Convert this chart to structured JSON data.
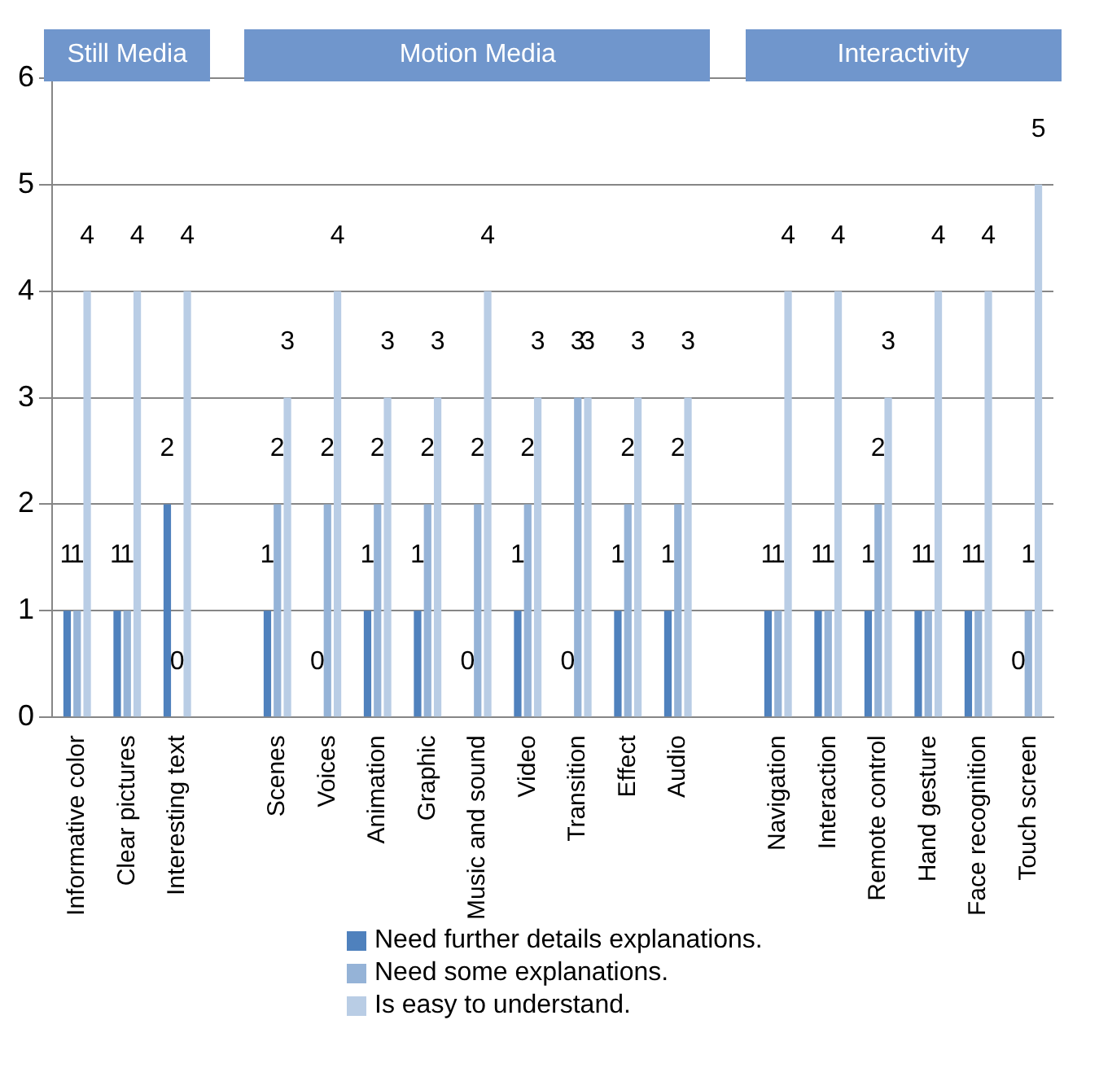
{
  "chart_data": {
    "type": "bar",
    "categories": [
      "Informative color",
      "Clear pictures",
      "Interesting text",
      null,
      "Scenes",
      "Voices",
      "Animation",
      "Graphic",
      "Music and sound",
      "Video",
      "Transition",
      "Effect",
      "Audio",
      null,
      "Navigation",
      "Interaction",
      "Remote control",
      "Hand gesture",
      "Face recognition",
      "Touch screen"
    ],
    "series": [
      {
        "name": "Need further details explanations.",
        "color": "#4f81bd",
        "values": [
          1,
          1,
          2,
          null,
          1,
          0,
          1,
          1,
          0,
          1,
          0,
          1,
          1,
          null,
          1,
          1,
          1,
          1,
          1,
          0
        ]
      },
      {
        "name": "Need some explanations.",
        "color": "#95b3d7",
        "values": [
          1,
          1,
          0,
          null,
          2,
          2,
          2,
          2,
          2,
          2,
          3,
          2,
          2,
          null,
          1,
          1,
          2,
          1,
          1,
          1
        ]
      },
      {
        "name": "Is easy to understand.",
        "color": "#b9cde5",
        "values": [
          4,
          4,
          4,
          null,
          3,
          4,
          3,
          3,
          4,
          3,
          3,
          3,
          3,
          null,
          4,
          4,
          3,
          4,
          4,
          5
        ]
      }
    ],
    "ylim": [
      0,
      6
    ],
    "yticks": [
      0,
      1,
      2,
      3,
      4,
      5,
      6
    ],
    "grid": "y",
    "legend": "bottom",
    "data_labels": true,
    "annotations": [
      "Still Media",
      "Motion Media",
      "Interactivity"
    ]
  }
}
